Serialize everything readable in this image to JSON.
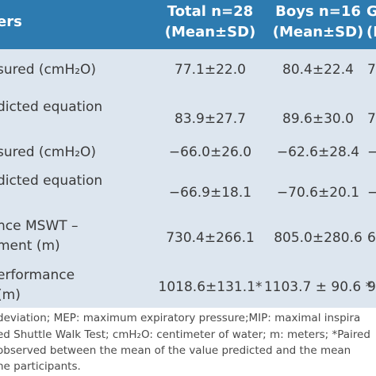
{
  "table": {
    "header": [
      "ers",
      "Total n=28",
      "(Mean±SD)",
      "Boys n=16",
      "(Mean±SD)",
      "G",
      "(M"
    ],
    "rows": [
      {
        "label": [
          "sured (cmH₂O)"
        ],
        "cells": [
          "77.1±22.0",
          "80.4±22.4",
          "7"
        ]
      },
      {
        "label": [
          "dicted equation"
        ],
        "cells": [
          "83.9±27.7",
          "89.6±30.0",
          "7"
        ]
      },
      {
        "label": [
          "sured (cmH₂O)"
        ],
        "cells": [
          "−66.0±26.0",
          "−62.6±28.4",
          "−"
        ]
      },
      {
        "label": [
          "dicted equation"
        ],
        "cells": [
          "−66.9±18.1",
          "−70.6±20.1",
          "−"
        ]
      },
      {
        "label": [
          "nce MSWT –",
          "ment (m)"
        ],
        "cells": [
          "730.4±266.1",
          "805.0±280.6",
          "6"
        ]
      },
      {
        "label": [
          "erformance",
          " (m)"
        ],
        "cells": [
          "1018.6±131.1*",
          "1103.7 ± 90.6 *",
          "9"
        ]
      }
    ]
  },
  "footnote": [
    "deviation; MEP: maximum expiratory pressure;MIP: maximal inspira",
    "ed Shuttle Walk Test; cmH₂O: centimeter of water; m: meters; *Paired",
    "observed between the mean of the value predicted and the mean",
    "he participants."
  ]
}
